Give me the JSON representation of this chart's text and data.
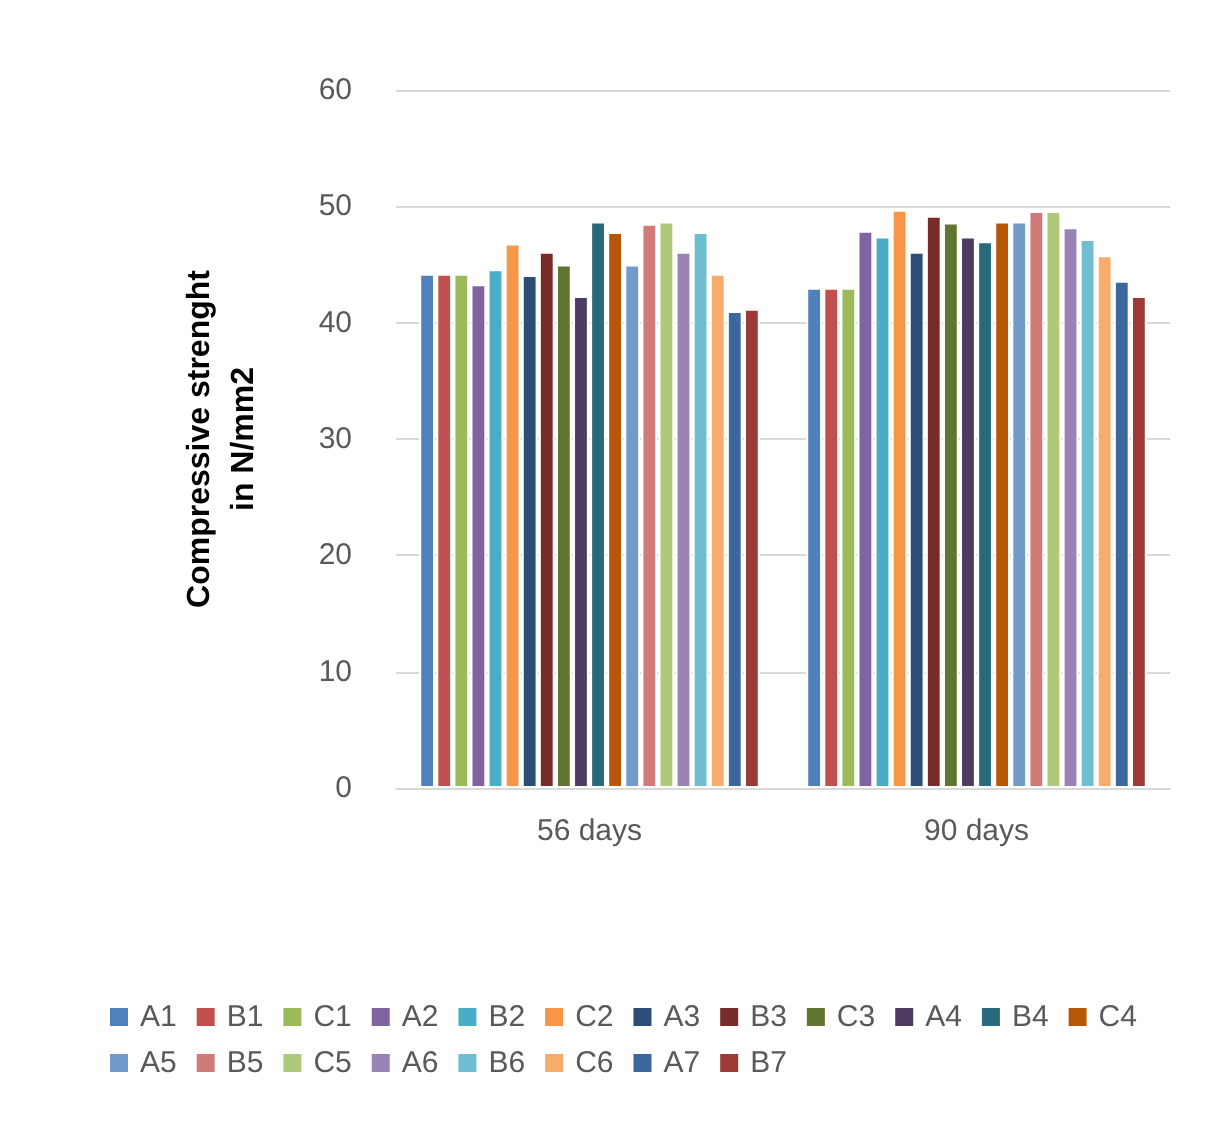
{
  "chart_data": {
    "type": "bar",
    "ylabel": "Compressive strenght\nin N/mm2",
    "categories": [
      "56 days",
      "90 days"
    ],
    "ylim": [
      0,
      60
    ],
    "yticks": [
      0,
      10,
      20,
      30,
      40,
      50,
      60
    ],
    "grid": "y",
    "legend": "bottom",
    "series": [
      {
        "name": "A1",
        "color": "#4f81bd",
        "values": [
          44.2,
          43.0
        ]
      },
      {
        "name": "B1",
        "color": "#c0504d",
        "values": [
          44.2,
          43.0
        ]
      },
      {
        "name": "C1",
        "color": "#9bbb59",
        "values": [
          44.2,
          43.0
        ]
      },
      {
        "name": "A2",
        "color": "#8064a2",
        "values": [
          43.3,
          47.9
        ]
      },
      {
        "name": "B2",
        "color": "#4bacc6",
        "values": [
          44.6,
          47.4
        ]
      },
      {
        "name": "C2",
        "color": "#f79646",
        "values": [
          46.8,
          49.7
        ]
      },
      {
        "name": "A3",
        "color": "#2c4d75",
        "values": [
          44.1,
          46.1
        ]
      },
      {
        "name": "B3",
        "color": "#772c2a",
        "values": [
          46.1,
          49.2
        ]
      },
      {
        "name": "C3",
        "color": "#5f7530",
        "values": [
          45.0,
          48.6
        ]
      },
      {
        "name": "A4",
        "color": "#4d3b62",
        "values": [
          42.3,
          47.4
        ]
      },
      {
        "name": "B4",
        "color": "#276a7c",
        "values": [
          48.7,
          47.0
        ]
      },
      {
        "name": "C4",
        "color": "#b65708",
        "values": [
          47.8,
          48.7
        ]
      },
      {
        "name": "A5",
        "color": "#729aca",
        "values": [
          45.0,
          48.7
        ]
      },
      {
        "name": "B5",
        "color": "#d07b79",
        "values": [
          48.5,
          49.6
        ]
      },
      {
        "name": "C5",
        "color": "#afc97a",
        "values": [
          48.7,
          49.6
        ]
      },
      {
        "name": "A6",
        "color": "#9983b5",
        "values": [
          46.1,
          48.2
        ]
      },
      {
        "name": "B6",
        "color": "#6fbdd1",
        "values": [
          47.8,
          47.2
        ]
      },
      {
        "name": "C6",
        "color": "#f9ab6b",
        "values": [
          44.2,
          45.8
        ]
      },
      {
        "name": "A7",
        "color": "#3a679c",
        "values": [
          41.0,
          43.6
        ]
      },
      {
        "name": "B7",
        "color": "#9c3b38",
        "values": [
          41.2,
          42.3
        ]
      }
    ]
  }
}
